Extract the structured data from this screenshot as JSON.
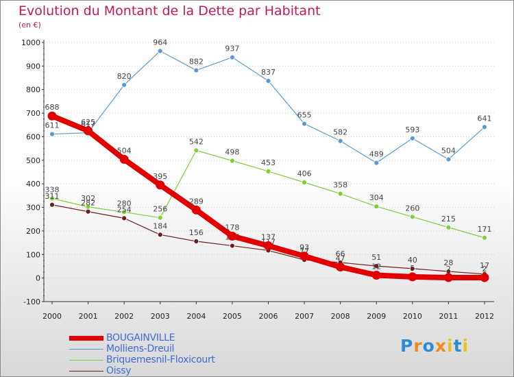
{
  "title": "Evolution du Montant de la Dette par Habitant",
  "unit": "(en €)",
  "logo": {
    "text": "Proxiti",
    "colors": [
      "#2e8bd6",
      "#f08a1c",
      "#2e8bd6",
      "#f08a1c",
      "#e8c21a",
      "#2e8bd6",
      "#e8c21a"
    ]
  },
  "chart_data": {
    "type": "line",
    "title": "Evolution du Montant de la Dette par Habitant",
    "ylabel": "(en €)",
    "xlabel": "",
    "ylim": [
      -100,
      1000
    ],
    "yticks": [
      "-100",
      "0",
      "100",
      "200",
      "300",
      "400",
      "500",
      "600",
      "700",
      "800",
      "900",
      "1000"
    ],
    "categories": [
      "2000",
      "2001",
      "2002",
      "2003",
      "2004",
      "2005",
      "2006",
      "2007",
      "2008",
      "2009",
      "2010",
      "2011",
      "2012"
    ],
    "series": [
      {
        "name": "Molliens-Dreuil",
        "color": "#5b9bd5",
        "values": [
          611,
          617,
          820,
          964,
          882,
          937,
          837,
          655,
          582,
          489,
          593,
          504,
          641
        ]
      },
      {
        "name": "Briquemesnil-Floxicourt",
        "color": "#7fcf3c",
        "values": [
          338,
          302,
          280,
          256,
          542,
          498,
          453,
          406,
          358,
          304,
          260,
          215,
          171
        ]
      },
      {
        "name": "Oissy",
        "color": "#6b1f1f",
        "values": [
          311,
          282,
          254,
          184,
          156,
          137,
          117,
          77,
          66,
          51,
          40,
          28,
          17
        ]
      },
      {
        "name": "BOUGAINVILLE",
        "color": "#e00000",
        "values": [
          688,
          625,
          504,
          395,
          289,
          178,
          137,
          93,
          47,
          12,
          5,
          2,
          2
        ]
      }
    ],
    "legend": [
      "BOUGAINVILLE",
      "Molliens-Dreuil",
      "Briquemesnil-Floxicourt",
      "Oissy"
    ]
  }
}
